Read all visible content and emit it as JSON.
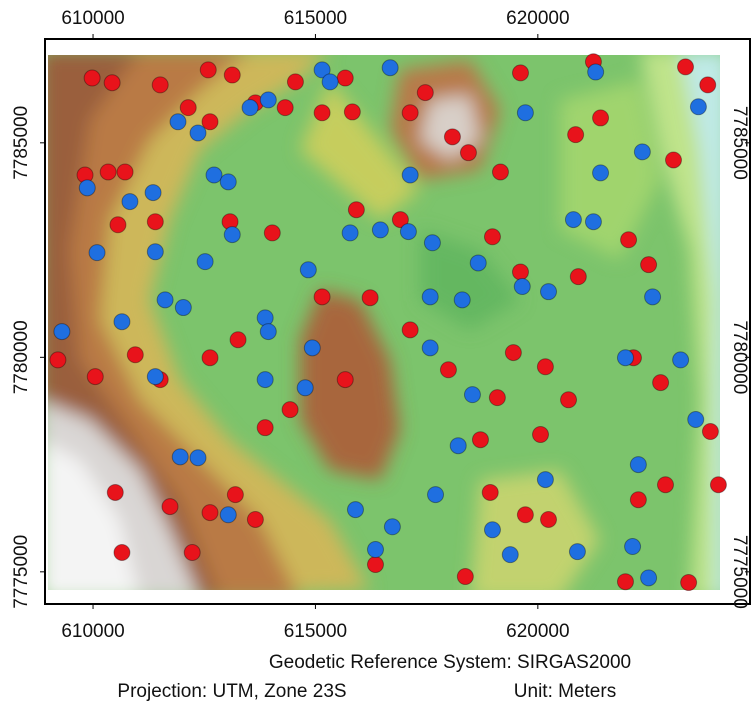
{
  "chart_data": {
    "type": "scatter",
    "xlim": [
      608920,
      624770
    ],
    "ylim": [
      7774250,
      7787420
    ],
    "xticks": [
      610000,
      615000,
      620000
    ],
    "yticks": [
      7775000,
      7780000,
      7785000
    ],
    "annotations": [
      "Geodetic Reference System: SIRGAS2000",
      "Projection: UTM, Zone 23S",
      "Unit: Meters"
    ],
    "series": [
      {
        "color": "#e8131b",
        "x": [
          609980,
          610430,
          611510,
          612590,
          613130,
          614550,
          615670,
          617470,
          619610,
          621250,
          623320,
          623820,
          609820,
          610340,
          610720,
          612140,
          612630,
          613650,
          614320,
          615150,
          615830,
          617130,
          618080,
          618440,
          619160,
          620850,
          621410,
          623050,
          610560,
          611400,
          613080,
          614030,
          615920,
          616910,
          618980,
          619610,
          620910,
          622040,
          622490,
          609210,
          610050,
          610950,
          611510,
          612630,
          613260,
          613870,
          614430,
          615670,
          615150,
          616230,
          617130,
          619450,
          620170,
          619090,
          620060,
          620690,
          622150,
          622760,
          623880,
          610500,
          611730,
          612630,
          613650,
          613200,
          610650,
          612230,
          616350,
          618370,
          618930,
          619720,
          620240,
          621970,
          623390,
          622870,
          624060,
          622260,
          617990,
          618710
        ],
        "y": [
          7786510,
          7786400,
          7786350,
          7786700,
          7786580,
          7786420,
          7786510,
          7786170,
          7786630,
          7786890,
          7786770,
          7786350,
          7784250,
          7784320,
          7784320,
          7785820,
          7785490,
          7785930,
          7785820,
          7785700,
          7785720,
          7785700,
          7785140,
          7784770,
          7784320,
          7785190,
          7785580,
          7784600,
          7783090,
          7783160,
          7783160,
          7782900,
          7783440,
          7783210,
          7782810,
          7781990,
          7781880,
          7782740,
          7782160,
          7779940,
          7779550,
          7780060,
          7779480,
          7779990,
          7780410,
          7778360,
          7778780,
          7779480,
          7781410,
          7781390,
          7780640,
          7780110,
          7779780,
          7779060,
          7778200,
          7779010,
          7779990,
          7779410,
          7778270,
          7776850,
          7776520,
          7776380,
          7776220,
          7776800,
          7775450,
          7775450,
          7775170,
          7774890,
          7776850,
          7776330,
          7776220,
          7774770,
          7774750,
          7777030,
          7777030,
          7776680,
          7779710,
          7778080
        ]
      },
      {
        "color": "#1f6fe0",
        "x": [
          609300,
          609870,
          610090,
          610650,
          610830,
          611350,
          611910,
          612360,
          612720,
          613040,
          613530,
          613940,
          615150,
          615330,
          616680,
          617130,
          617630,
          616460,
          617090,
          615780,
          614840,
          613130,
          612520,
          611400,
          611620,
          612030,
          613870,
          614930,
          613940,
          617580,
          618300,
          619650,
          620240,
          620800,
          621250,
          619720,
          621300,
          622350,
          623610,
          621410,
          622580,
          621970,
          623210,
          623550,
          611400,
          611960,
          612360,
          613040,
          615900,
          616730,
          616350,
          617700,
          618530,
          618660,
          620170,
          619380,
          620890,
          622130,
          622260,
          622490,
          618210,
          614770,
          613870,
          617580,
          618980
        ],
        "y": [
          7780600,
          7783950,
          7782440,
          7780830,
          7783630,
          7783840,
          7785490,
          7785230,
          7784250,
          7784090,
          7785820,
          7786000,
          7786700,
          7786420,
          7786750,
          7784250,
          7782670,
          7782970,
          7782930,
          7782900,
          7782040,
          7782860,
          7782230,
          7782460,
          7781340,
          7781160,
          7780920,
          7780220,
          7780600,
          7781410,
          7781340,
          7781650,
          7781530,
          7783210,
          7783160,
          7785700,
          7786650,
          7784790,
          7785840,
          7784300,
          7781410,
          7779990,
          7779940,
          7778550,
          7779550,
          7777680,
          7777660,
          7776330,
          7776450,
          7776050,
          7775520,
          7776800,
          7779130,
          7782200,
          7777150,
          7775400,
          7775470,
          7775590,
          7777500,
          7774860,
          7777940,
          7779290,
          7779480,
          7780220,
          7775980
        ]
      }
    ]
  }
}
